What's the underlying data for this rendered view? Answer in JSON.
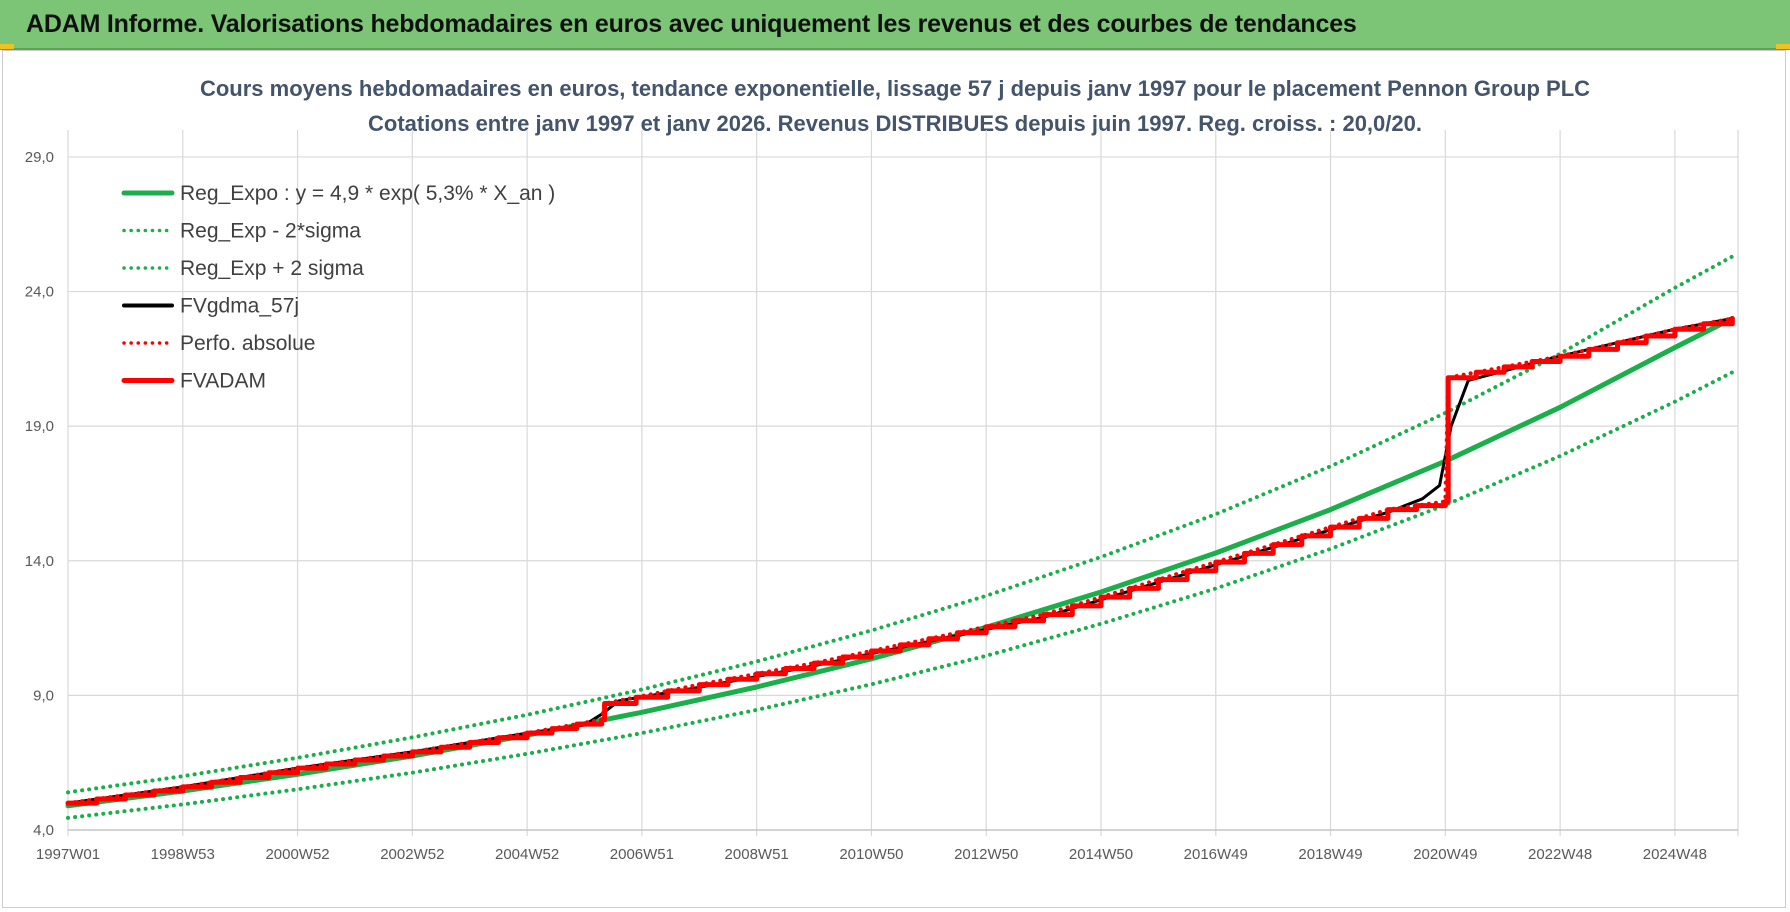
{
  "header": {
    "title": "ADAM Informe. Valorisations hebdomadaires en euros avec uniquement les revenus et des courbes de tendances"
  },
  "chart_data": {
    "type": "line",
    "title_line1": "Cours moyens hebdomadaires en euros, tendance exponentielle, lissage 57 j depuis janv 1997  pour le placement Pennon Group PLC",
    "title_line2": "Cotations entre janv 1997 et janv 2026. Revenus DISTRIBUES depuis juin 1997. Reg. croiss. : 20,0/20.",
    "xlim": [
      1997.0,
      2026.1
    ],
    "ylim": [
      4.0,
      30.0
    ],
    "y_ticks": [
      4.0,
      9.0,
      14.0,
      19.0,
      24.0,
      29.0
    ],
    "y_tick_labels": [
      "4,0",
      "9,0",
      "14,0",
      "19,0",
      "24,0",
      "29,0"
    ],
    "x_ticks": [
      1997.0,
      1999.0,
      2001.0,
      2003.0,
      2005.0,
      2007.0,
      2009.0,
      2011.0,
      2013.0,
      2015.0,
      2017.0,
      2019.0,
      2021.0,
      2023.0,
      2025.0
    ],
    "x_tick_labels": [
      "1997W01",
      "1998W53",
      "2000W52",
      "2002W52",
      "2004W52",
      "2006W51",
      "2008W51",
      "2010W50",
      "2012W50",
      "2014W50",
      "2016W49",
      "2018W49",
      "2020W49",
      "2022W48",
      "2024W48"
    ],
    "grid": true,
    "legend_position": "top-left",
    "series": [
      {
        "name": "Reg_Expo : y = 4,9 * exp( 5,3% *  X_an )",
        "color": "#1aaf4b",
        "style": "solid",
        "x": [
          1997.0,
          1999.0,
          2001.0,
          2003.0,
          2005.0,
          2007.0,
          2009.0,
          2011.0,
          2013.0,
          2015.0,
          2017.0,
          2019.0,
          2021.0,
          2023.0,
          2025.0,
          2026.0
        ],
        "values": [
          4.9,
          5.45,
          6.07,
          6.75,
          7.52,
          8.37,
          9.31,
          10.36,
          11.53,
          12.84,
          14.29,
          15.9,
          17.7,
          19.7,
          21.92,
          23.0
        ]
      },
      {
        "name": "Reg_Exp - 2*sigma",
        "color": "#1aaf4b",
        "style": "dotted",
        "x": [
          1997.0,
          1999.0,
          2001.0,
          2003.0,
          2005.0,
          2007.0,
          2009.0,
          2011.0,
          2013.0,
          2015.0,
          2017.0,
          2019.0,
          2021.0,
          2023.0,
          2025.0,
          2026.0
        ],
        "values": [
          4.45,
          4.95,
          5.51,
          6.13,
          6.83,
          7.6,
          8.46,
          9.41,
          10.47,
          11.66,
          12.97,
          14.44,
          16.07,
          17.89,
          19.91,
          21.0
        ]
      },
      {
        "name": "Reg_Exp + 2 sigma",
        "color": "#1aaf4b",
        "style": "dotted",
        "x": [
          1997.0,
          1999.0,
          2001.0,
          2003.0,
          2005.0,
          2007.0,
          2009.0,
          2011.0,
          2013.0,
          2015.0,
          2017.0,
          2019.0,
          2021.0,
          2023.0,
          2025.0,
          2026.0
        ],
        "values": [
          5.4,
          6.0,
          6.68,
          7.44,
          8.28,
          9.22,
          10.26,
          11.41,
          12.7,
          14.14,
          15.73,
          17.51,
          19.49,
          21.69,
          24.14,
          25.3
        ]
      },
      {
        "name": "FVgdma_57j",
        "color": "#000000",
        "style": "solid",
        "x": [
          1997.0,
          1999.0,
          2001.0,
          2003.0,
          2005.0,
          2006.0,
          2006.3,
          2006.6,
          2008.0,
          2010.0,
          2012.0,
          2014.0,
          2016.0,
          2018.0,
          2020.0,
          2020.6,
          2020.9,
          2021.1,
          2021.4,
          2023.0,
          2025.0,
          2026.0
        ],
        "values": [
          5.0,
          5.6,
          6.3,
          6.9,
          7.6,
          7.9,
          8.3,
          8.8,
          9.3,
          10.1,
          11.0,
          11.9,
          13.2,
          14.5,
          15.8,
          16.3,
          16.8,
          19.0,
          20.7,
          21.6,
          22.6,
          23.0
        ]
      },
      {
        "name": "Perfo. absolue",
        "color": "#ff0000",
        "style": "dotted",
        "x": [
          1997.0,
          1999.0,
          2001.0,
          2003.0,
          2005.0,
          2006.3,
          2006.35,
          2008.0,
          2010.0,
          2012.0,
          2014.0,
          2016.0,
          2018.0,
          2020.0,
          2021.0,
          2021.05,
          2023.0,
          2025.0,
          2026.0
        ],
        "values": [
          5.0,
          5.6,
          6.3,
          6.9,
          7.6,
          8.1,
          8.7,
          9.4,
          10.2,
          11.1,
          12.0,
          13.3,
          14.6,
          15.9,
          16.2,
          20.8,
          21.6,
          22.6,
          23.0
        ]
      },
      {
        "name": "FVADAM",
        "color": "#ff0000",
        "style": "solid",
        "stepped": true,
        "x": [
          1997.0,
          1999.0,
          2001.0,
          2003.0,
          2005.0,
          2006.3,
          2006.35,
          2008.0,
          2010.0,
          2012.0,
          2014.0,
          2016.0,
          2018.0,
          2020.0,
          2021.0,
          2021.05,
          2023.0,
          2025.0,
          2026.0
        ],
        "values": [
          5.0,
          5.6,
          6.3,
          6.9,
          7.6,
          8.1,
          8.7,
          9.4,
          10.2,
          11.1,
          12.0,
          13.3,
          14.6,
          15.9,
          16.2,
          20.8,
          21.6,
          22.6,
          23.0
        ]
      }
    ]
  }
}
